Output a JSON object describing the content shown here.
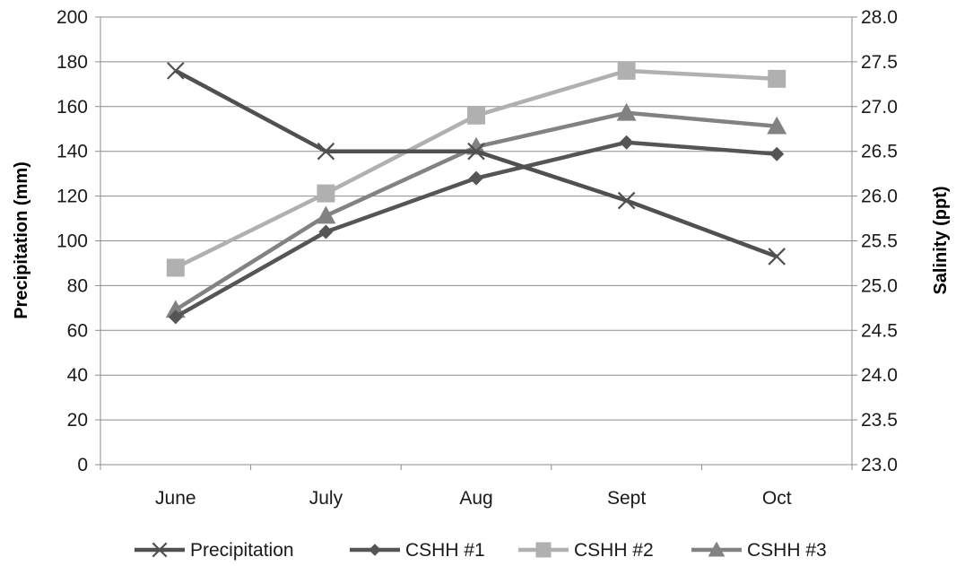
{
  "chart_data": {
    "type": "line",
    "categories": [
      "June",
      "July",
      "Aug",
      "Sept",
      "Oct"
    ],
    "y_left": {
      "label": "Precipitation (mm)",
      "range": [
        0,
        200
      ],
      "ticks": [
        "0",
        "20",
        "40",
        "60",
        "80",
        "100",
        "120",
        "140",
        "160",
        "180",
        "200"
      ]
    },
    "y_right": {
      "label": "Salinity (ppt)",
      "range": [
        23.0,
        28.0
      ],
      "ticks": [
        "23.0",
        "23.5",
        "24.0",
        "24.5",
        "25.0",
        "25.5",
        "26.0",
        "26.5",
        "27.0",
        "27.5",
        "28.0"
      ]
    },
    "grid": true,
    "legend_position": "bottom",
    "series": [
      {
        "name": "Precipitation",
        "axis": "left",
        "marker": "x-marker",
        "color": "#505050",
        "values": [
          176,
          140,
          140,
          118,
          93
        ]
      },
      {
        "name": "CSHH #1",
        "axis": "right",
        "marker": "diamond-marker",
        "color": "#555555",
        "values": [
          24.65,
          25.6,
          26.2,
          26.6,
          26.47
        ]
      },
      {
        "name": "CSHH #2",
        "axis": "right",
        "marker": "square-marker",
        "color": "#b0b0b0",
        "values": [
          25.2,
          26.03,
          26.9,
          27.4,
          27.31
        ]
      },
      {
        "name": "CSHH #3",
        "axis": "right",
        "marker": "triangle-marker",
        "color": "#828282",
        "values": [
          24.73,
          25.78,
          26.55,
          26.93,
          26.78
        ]
      }
    ]
  }
}
